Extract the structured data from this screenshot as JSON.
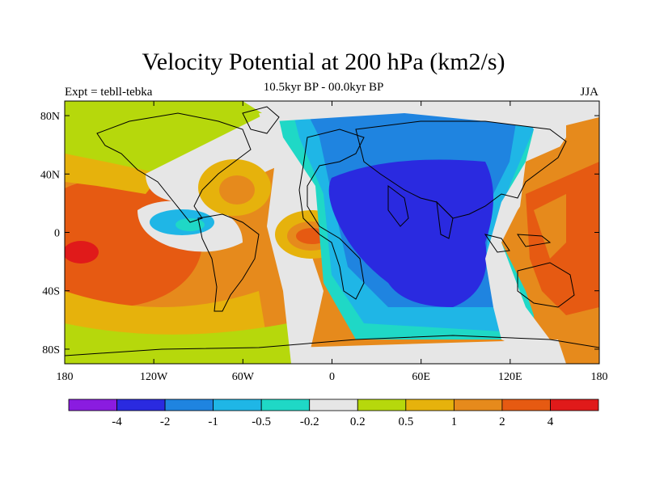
{
  "title": "Velocity Potential at 200 hPa (km2/s)",
  "subtitle": "10.5kyr BP - 00.0kyr BP",
  "left_label": "Expt = tebll-tebka",
  "right_label": "JJA",
  "map": {
    "y_ticks": [
      "80N",
      "40N",
      "0",
      "40S",
      "80S"
    ],
    "x_ticks": [
      "180",
      "120W",
      "60W",
      "0",
      "60E",
      "120E",
      "180"
    ],
    "lon_range": [
      -180,
      180
    ],
    "lat_range": [
      -90,
      90
    ]
  },
  "colorbar": {
    "colors": [
      "#8a1ce0",
      "#2a2ae0",
      "#1f84e0",
      "#1fb6e6",
      "#1fd8c6",
      "#e6e6e6",
      "#b6d80c",
      "#e6b20c",
      "#e68a1c",
      "#e65a12",
      "#e01a1a"
    ],
    "labels": [
      "-4",
      "-2",
      "-1",
      "-0.5",
      "-0.2",
      "0.2",
      "0.5",
      "1",
      "2",
      "4"
    ]
  }
}
